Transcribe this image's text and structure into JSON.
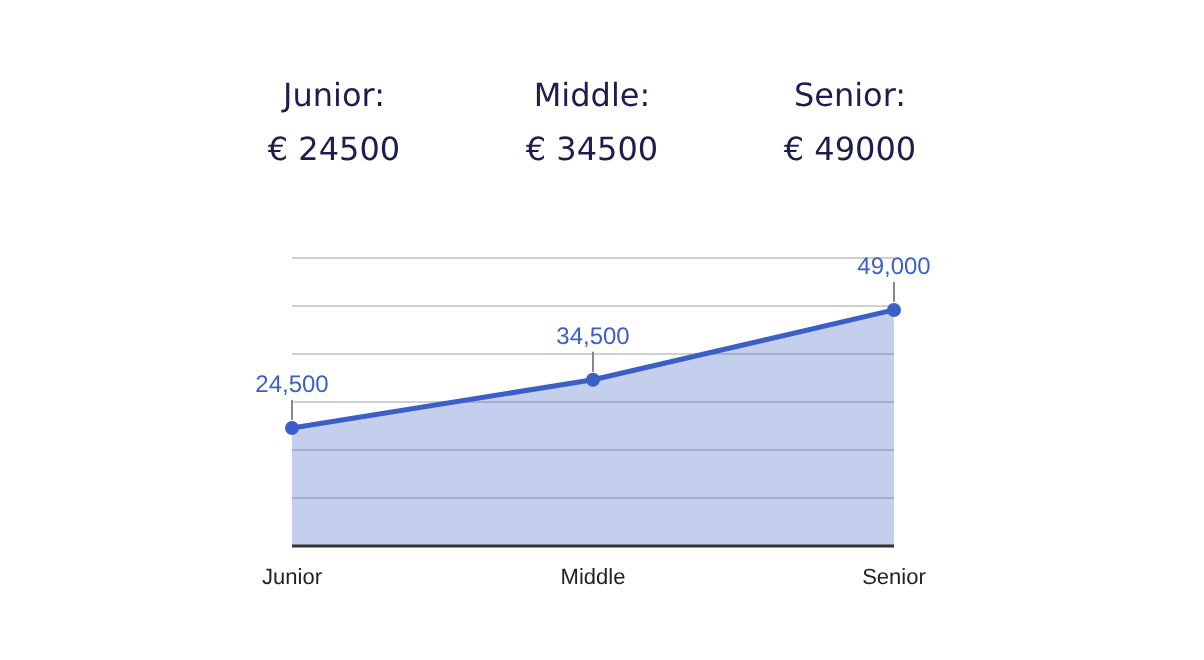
{
  "chart_data": {
    "type": "area",
    "categories": [
      "Junior",
      "Middle",
      "Senior"
    ],
    "series": [
      {
        "color": "#3b5fc6",
        "values": [
          24500,
          34500,
          49000
        ],
        "value_labels": [
          "24,500",
          "34,500",
          "49,000"
        ]
      }
    ],
    "grid": "y",
    "marker": "circle",
    "tick_labels": "x",
    "annotations": [
      "Junior:",
      "Middle:",
      "Senior:",
      "€ 24500",
      "€ 34500",
      "€ 49000"
    ]
  }
}
